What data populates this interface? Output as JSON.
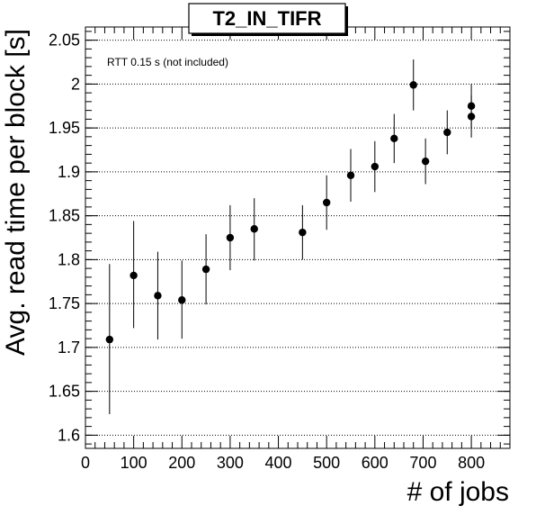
{
  "chart_data": {
    "type": "scatter",
    "title": "T2_IN_TIFR",
    "xlabel": "# of jobs",
    "ylabel": "Avg. read time per block [s]",
    "annotation": "RTT 0.15 s (not included)",
    "xlim": [
      0,
      880
    ],
    "ylim": [
      1.585,
      2.065
    ],
    "x_ticks": [
      0,
      100,
      200,
      300,
      400,
      500,
      600,
      700,
      800
    ],
    "x_tick_labels": [
      "0",
      "100",
      "200",
      "300",
      "400",
      "500",
      "600",
      "700",
      "800"
    ],
    "y_ticks": [
      1.6,
      1.65,
      1.7,
      1.75,
      1.8,
      1.85,
      1.9,
      1.95,
      2.0,
      2.05
    ],
    "y_tick_labels": [
      "1.6",
      "1.65",
      "1.7",
      "1.75",
      "1.8",
      "1.85",
      "1.9",
      "1.95",
      "2",
      "2.05"
    ],
    "grid": {
      "x": false,
      "y": true
    },
    "legend": "none",
    "colors": {
      "marker": "#000000",
      "grid": "#000000",
      "frame": "#000000"
    },
    "series": [
      {
        "x": [
          50,
          100,
          150,
          200,
          250,
          300,
          350,
          450,
          500,
          550,
          600,
          640,
          680,
          705,
          750,
          800,
          800
        ],
        "y": [
          1.709,
          1.782,
          1.759,
          1.754,
          1.789,
          1.825,
          1.835,
          1.831,
          1.865,
          1.896,
          1.906,
          1.938,
          1.999,
          1.912,
          1.945,
          1.963,
          1.975
        ],
        "y_low": [
          1.624,
          1.722,
          1.709,
          1.71,
          1.749,
          1.788,
          1.799,
          1.8,
          1.834,
          1.866,
          1.877,
          1.91,
          1.97,
          1.886,
          1.92,
          1.939,
          1.95
        ],
        "y_high": [
          1.795,
          1.844,
          1.809,
          1.799,
          1.829,
          1.862,
          1.87,
          1.862,
          1.896,
          1.926,
          1.935,
          1.966,
          2.028,
          1.938,
          1.97,
          1.987,
          2.0
        ]
      }
    ]
  }
}
